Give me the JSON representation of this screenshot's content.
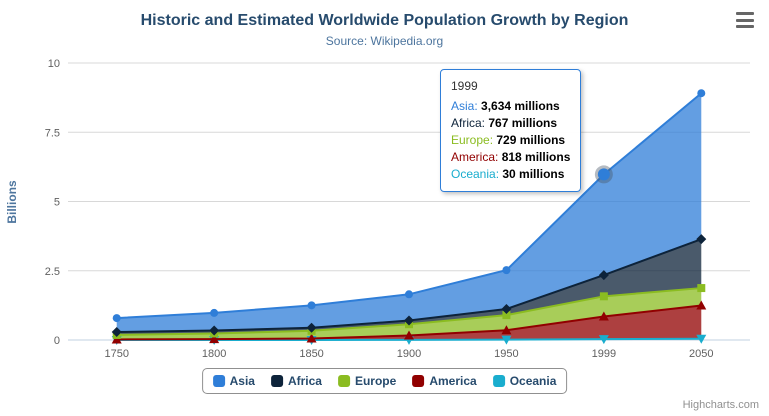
{
  "chart_data": {
    "type": "area",
    "stacking": "normal",
    "title": "Historic and Estimated Worldwide Population Growth by Region",
    "subtitle": "Source: Wikipedia.org",
    "xlabel": "",
    "ylabel": "Billions",
    "ylim": [
      0,
      10
    ],
    "yticks": [
      0,
      2.5,
      5,
      7.5,
      10
    ],
    "value_unit": "millions",
    "categories": [
      "1750",
      "1800",
      "1850",
      "1900",
      "1950",
      "1999",
      "2050"
    ],
    "series": [
      {
        "name": "Asia",
        "color": "#2f7ed8",
        "marker": "circle",
        "values": [
          502,
          635,
          809,
          947,
          1402,
          3634,
          5268
        ]
      },
      {
        "name": "Africa",
        "color": "#0d233a",
        "marker": "diamond",
        "values": [
          106,
          107,
          111,
          133,
          221,
          767,
          1766
        ]
      },
      {
        "name": "Europe",
        "color": "#8bbc21",
        "marker": "square",
        "values": [
          163,
          203,
          276,
          408,
          547,
          729,
          628
        ]
      },
      {
        "name": "America",
        "color": "#910000",
        "marker": "triangle",
        "values": [
          18,
          31,
          54,
          156,
          339,
          818,
          1201
        ]
      },
      {
        "name": "Oceania",
        "color": "#1aadce",
        "marker": "triangle-down",
        "values": [
          2,
          2,
          2,
          6,
          13,
          30,
          46
        ]
      }
    ],
    "stack_order_bottom_to_top": [
      "Oceania",
      "America",
      "Europe",
      "Africa",
      "Asia"
    ],
    "legend_position": "bottom",
    "grid": true
  },
  "tooltip": {
    "header": "1999",
    "hover_series": "Asia",
    "hover_category": "1999",
    "rows": [
      {
        "name": "Asia",
        "color": "#2f7ed8",
        "value": "3,634 millions"
      },
      {
        "name": "Africa",
        "color": "#0d233a",
        "value": "767 millions"
      },
      {
        "name": "Europe",
        "color": "#8bbc21",
        "value": "729 millions"
      },
      {
        "name": "America",
        "color": "#910000",
        "value": "818 millions"
      },
      {
        "name": "Oceania",
        "color": "#1aadce",
        "value": "30 millions"
      }
    ]
  },
  "legend": {
    "items": [
      {
        "label": "Asia",
        "color": "#2f7ed8"
      },
      {
        "label": "Africa",
        "color": "#0d233a"
      },
      {
        "label": "Europe",
        "color": "#8bbc21"
      },
      {
        "label": "America",
        "color": "#910000"
      },
      {
        "label": "Oceania",
        "color": "#1aadce"
      }
    ]
  },
  "credits": "Highcharts.com",
  "icons": {
    "export_menu": "hamburger-icon"
  },
  "colors": {
    "title": "#274b6d",
    "subtitle": "#4d759e",
    "axis_labels": "#606060",
    "grid_line": "#d8d8d8",
    "axis_line": "#c0d0e0",
    "legend_border": "#909090",
    "tooltip_border": "#2f7ed8",
    "credits": "#909090"
  }
}
